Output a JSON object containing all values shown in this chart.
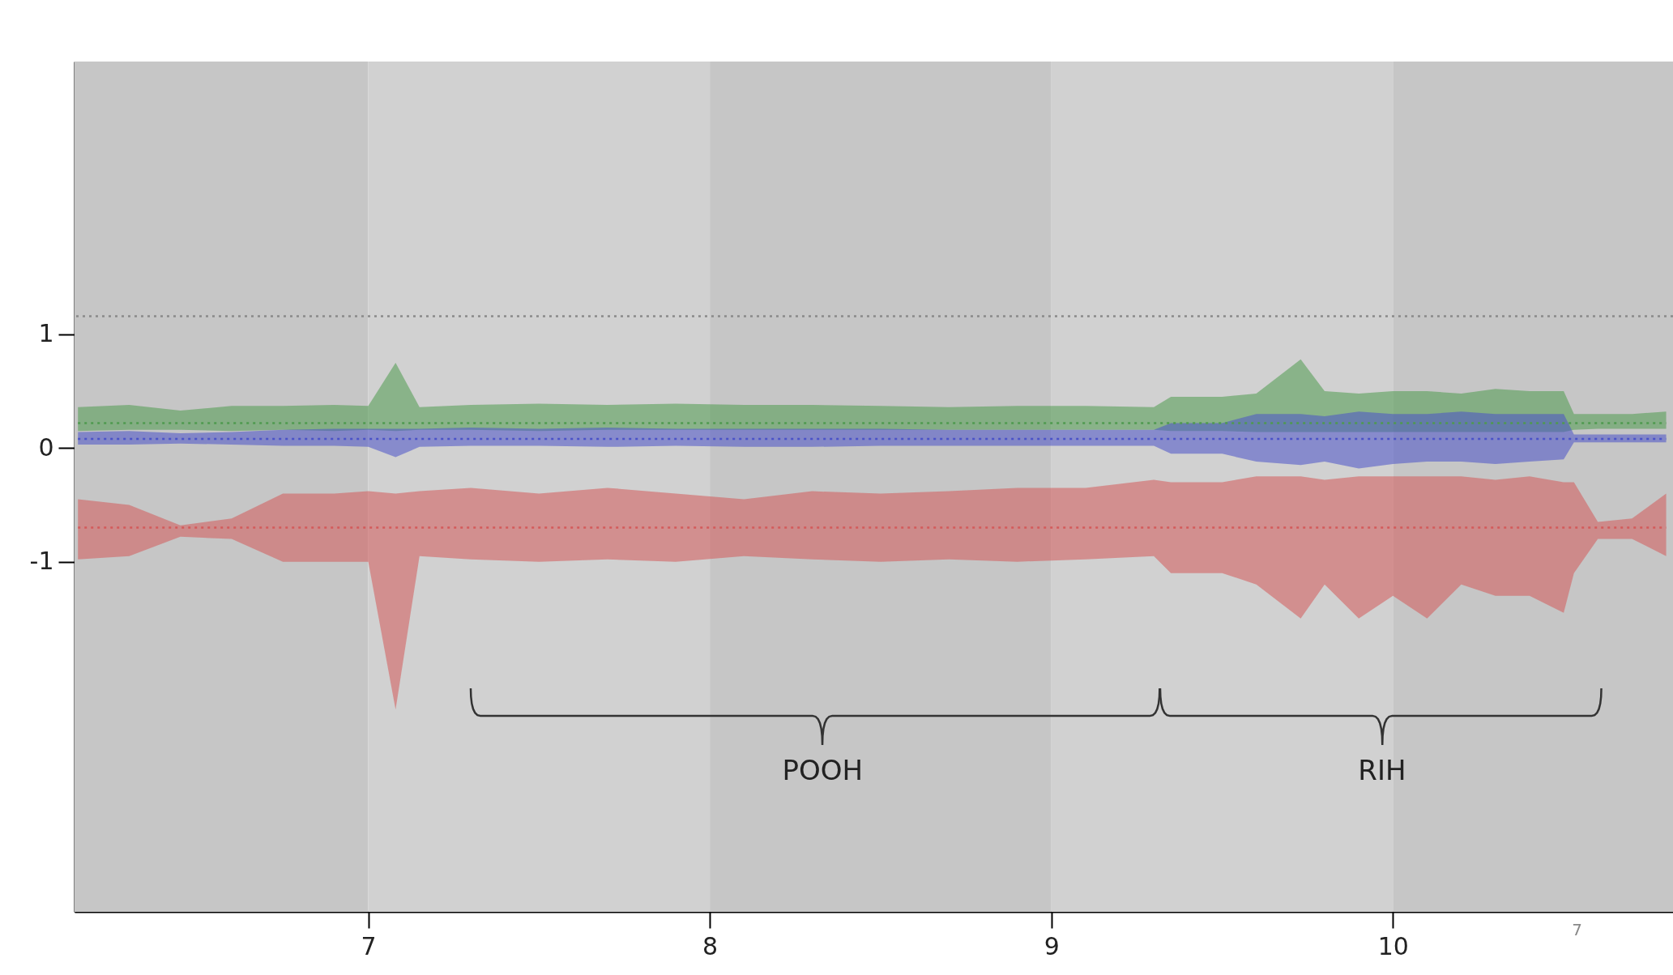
{
  "chart_data": {
    "type": "line",
    "x": [
      6.15,
      6.3,
      6.45,
      6.6,
      6.75,
      6.9,
      7.0,
      7.08,
      7.15,
      7.3,
      7.5,
      7.7,
      7.9,
      8.1,
      8.3,
      8.5,
      8.7,
      8.9,
      9.1,
      9.3,
      9.35,
      9.5,
      9.6,
      9.73,
      9.8,
      9.9,
      10.0,
      10.1,
      10.2,
      10.3,
      10.4,
      10.5,
      10.53,
      10.6,
      10.7,
      10.8
    ],
    "series": [
      {
        "color": "#4f9a4f",
        "line_style": "dotted",
        "values": [
          0.22,
          0.22,
          0.22,
          0.22,
          0.22,
          0.22,
          0.22,
          0.22,
          0.22,
          0.22,
          0.22,
          0.22,
          0.22,
          0.22,
          0.22,
          0.22,
          0.22,
          0.22,
          0.22,
          0.22,
          0.22,
          0.22,
          0.22,
          0.22,
          0.22,
          0.22,
          0.22,
          0.22,
          0.22,
          0.22,
          0.22,
          0.22,
          0.22,
          0.22,
          0.22,
          0.22
        ],
        "lower": [
          0.15,
          0.16,
          0.16,
          0.15,
          0.16,
          0.15,
          0.16,
          0.15,
          0.16,
          0.16,
          0.15,
          0.16,
          0.16,
          0.16,
          0.16,
          0.16,
          0.16,
          0.16,
          0.16,
          0.16,
          0.15,
          0.15,
          0.14,
          0.14,
          0.14,
          0.14,
          0.14,
          0.14,
          0.14,
          0.14,
          0.14,
          0.14,
          0.16,
          0.17,
          0.17,
          0.17
        ],
        "upper": [
          0.36,
          0.38,
          0.33,
          0.37,
          0.37,
          0.38,
          0.37,
          0.75,
          0.36,
          0.38,
          0.39,
          0.38,
          0.39,
          0.38,
          0.38,
          0.37,
          0.36,
          0.37,
          0.37,
          0.36,
          0.45,
          0.45,
          0.48,
          0.78,
          0.5,
          0.48,
          0.5,
          0.5,
          0.48,
          0.52,
          0.5,
          0.5,
          0.3,
          0.3,
          0.3,
          0.32
        ]
      },
      {
        "color": "#4a52c8",
        "line_style": "dotted",
        "values": [
          0.08,
          0.08,
          0.08,
          0.08,
          0.08,
          0.08,
          0.08,
          0.08,
          0.08,
          0.08,
          0.08,
          0.08,
          0.08,
          0.08,
          0.08,
          0.08,
          0.08,
          0.08,
          0.08,
          0.08,
          0.08,
          0.08,
          0.08,
          0.08,
          0.08,
          0.08,
          0.08,
          0.08,
          0.08,
          0.08,
          0.08,
          0.08,
          0.08,
          0.08,
          0.08,
          0.08
        ],
        "lower": [
          0.03,
          0.03,
          0.04,
          0.03,
          0.02,
          0.02,
          0.01,
          -0.08,
          0.01,
          0.02,
          0.02,
          0.01,
          0.02,
          0.01,
          0.01,
          0.02,
          0.02,
          0.02,
          0.02,
          0.02,
          -0.05,
          -0.05,
          -0.12,
          -0.15,
          -0.12,
          -0.18,
          -0.14,
          -0.12,
          -0.12,
          -0.14,
          -0.12,
          -0.1,
          0.05,
          0.05,
          0.05,
          0.05
        ],
        "upper": [
          0.14,
          0.15,
          0.13,
          0.14,
          0.16,
          0.17,
          0.17,
          0.17,
          0.17,
          0.18,
          0.17,
          0.18,
          0.17,
          0.17,
          0.17,
          0.17,
          0.16,
          0.16,
          0.16,
          0.16,
          0.22,
          0.22,
          0.3,
          0.3,
          0.28,
          0.32,
          0.3,
          0.3,
          0.32,
          0.3,
          0.3,
          0.3,
          0.12,
          0.12,
          0.12,
          0.12
        ]
      },
      {
        "color": "#d45a5a",
        "line_style": "dotted",
        "values": [
          -0.7,
          -0.7,
          -0.7,
          -0.7,
          -0.7,
          -0.7,
          -0.7,
          -0.7,
          -0.7,
          -0.7,
          -0.7,
          -0.7,
          -0.7,
          -0.7,
          -0.7,
          -0.7,
          -0.7,
          -0.7,
          -0.7,
          -0.7,
          -0.7,
          -0.7,
          -0.7,
          -0.7,
          -0.7,
          -0.7,
          -0.7,
          -0.7,
          -0.7,
          -0.7,
          -0.7,
          -0.7,
          -0.7,
          -0.7,
          -0.7,
          -0.7
        ],
        "lower": [
          -0.98,
          -0.95,
          -0.78,
          -0.8,
          -1.0,
          -1.0,
          -1.0,
          -2.3,
          -0.95,
          -0.98,
          -1.0,
          -0.98,
          -1.0,
          -0.95,
          -0.98,
          -1.0,
          -0.98,
          -1.0,
          -0.98,
          -0.95,
          -1.1,
          -1.1,
          -1.2,
          -1.5,
          -1.2,
          -1.5,
          -1.3,
          -1.5,
          -1.2,
          -1.3,
          -1.3,
          -1.45,
          -1.1,
          -0.8,
          -0.8,
          -0.95
        ],
        "upper": [
          -0.45,
          -0.5,
          -0.68,
          -0.62,
          -0.4,
          -0.4,
          -0.38,
          -0.4,
          -0.38,
          -0.35,
          -0.4,
          -0.35,
          -0.4,
          -0.45,
          -0.38,
          -0.4,
          -0.38,
          -0.35,
          -0.35,
          -0.28,
          -0.3,
          -0.3,
          -0.25,
          -0.25,
          -0.28,
          -0.25,
          -0.25,
          -0.25,
          -0.25,
          -0.28,
          -0.25,
          -0.3,
          -0.3,
          -0.65,
          -0.62,
          -0.4
        ]
      }
    ],
    "xlim": [
      6.14,
      10.82
    ],
    "xticks": [
      7,
      8,
      9,
      10
    ],
    "ylim": [
      -4.08,
      3.4
    ],
    "yticks": [
      -1,
      0,
      1
    ],
    "ref_lines": [
      {
        "axis": "y",
        "value": 1.16,
        "line_style": "dotted",
        "color": "#8a8a8a"
      }
    ],
    "bands": [
      {
        "axis": "x",
        "from": 6.14,
        "to": 7,
        "color": "#c6c6c6"
      },
      {
        "axis": "x",
        "from": 7,
        "to": 8,
        "color": "#d1d1d1"
      },
      {
        "axis": "x",
        "from": 8,
        "to": 9,
        "color": "#c6c6c6"
      },
      {
        "axis": "x",
        "from": 9,
        "to": 10,
        "color": "#d1d1d1"
      },
      {
        "axis": "x",
        "from": 10,
        "to": 10.82,
        "color": "#c6c6c6"
      }
    ],
    "annotations": [
      "POOH",
      "RIH",
      "7"
    ]
  }
}
